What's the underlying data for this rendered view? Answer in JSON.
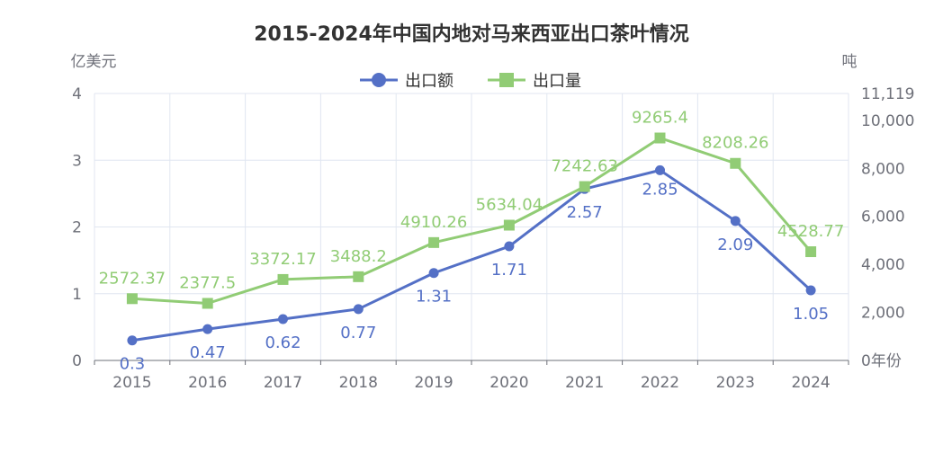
{
  "chart_data": {
    "type": "line",
    "title": "2015-2024年中国内地对马来西亚出口茶叶情况",
    "categories": [
      "2015",
      "2016",
      "2017",
      "2018",
      "2019",
      "2020",
      "2021",
      "2022",
      "2023",
      "2024"
    ],
    "y_left": {
      "label": "亿美元",
      "range": [
        0,
        4
      ],
      "ticks": [
        "0",
        "1",
        "2",
        "3",
        "4"
      ]
    },
    "y_right": {
      "label": "吨",
      "range": [
        0,
        11119
      ],
      "ticks": [
        "0年份",
        "2,000",
        "4,000",
        "6,000",
        "8,000",
        "10,000",
        "11,119"
      ]
    },
    "series": [
      {
        "name": "出口额",
        "axis": "left",
        "color": "#5470c6",
        "marker": "circle",
        "values": [
          0.3,
          0.47,
          0.62,
          0.77,
          1.31,
          1.71,
          2.57,
          2.85,
          2.09,
          1.05
        ],
        "labels": [
          "0.3",
          "0.47",
          "0.62",
          "0.77",
          "1.31",
          "1.71",
          "2.57",
          "2.85",
          "2.09",
          "1.05"
        ]
      },
      {
        "name": "出口量",
        "axis": "right",
        "color": "#91cc75",
        "marker": "square",
        "values": [
          2572.37,
          2377.5,
          3372.17,
          3488.2,
          4910.26,
          5634.04,
          7242.63,
          9265.4,
          8208.26,
          4528.77
        ],
        "labels": [
          "2572.37",
          "2377.5",
          "3372.17",
          "3488.2",
          "4910.26",
          "5634.04",
          "7242.63",
          "9265.4",
          "8208.26",
          "4528.77"
        ]
      }
    ],
    "legend_position": "top-center",
    "grid": true
  }
}
